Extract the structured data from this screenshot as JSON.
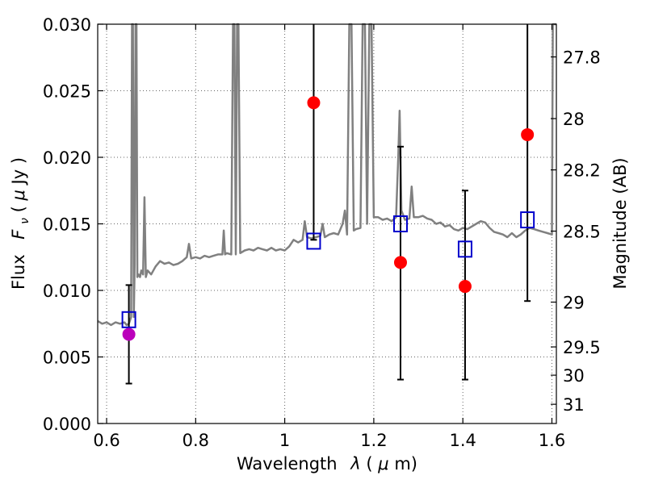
{
  "chart_data": {
    "type": "scatter",
    "xlabel_text": "Wavelength",
    "xlabel_symbol": "λ",
    "xlabel_unit_open": " (",
    "xlabel_unit_mu": "μ",
    "xlabel_unit_rest": "m)",
    "ylabel_text": "Flux",
    "ylabel_symbol": "F",
    "ylabel_sub": "ν",
    "ylabel_unit_open": " ( ",
    "ylabel_unit_mu": "μ",
    "ylabel_unit_rest": "Jy )",
    "y2label": "Magnitude (AB)",
    "xlim": [
      0.58,
      1.61
    ],
    "ylim": [
      0.0,
      0.03
    ],
    "grid": true,
    "x_ticks": [
      {
        "v": 0.6,
        "label": "0.6"
      },
      {
        "v": 0.8,
        "label": "0.8"
      },
      {
        "v": 1.0,
        "label": "1"
      },
      {
        "v": 1.2,
        "label": "1.2"
      },
      {
        "v": 1.4,
        "label": "1.4"
      },
      {
        "v": 1.6,
        "label": "1.6"
      }
    ],
    "y_ticks": [
      {
        "v": 0.0,
        "label": "0.000"
      },
      {
        "v": 0.005,
        "label": "0.005"
      },
      {
        "v": 0.01,
        "label": "0.010"
      },
      {
        "v": 0.015,
        "label": "0.015"
      },
      {
        "v": 0.02,
        "label": "0.020"
      },
      {
        "v": 0.025,
        "label": "0.025"
      },
      {
        "v": 0.03,
        "label": "0.030"
      }
    ],
    "y2_ticks": [
      {
        "mag": 27.8,
        "label": "27.8"
      },
      {
        "mag": 28.0,
        "label": "28"
      },
      {
        "mag": 28.2,
        "label": "28.2"
      },
      {
        "mag": 28.5,
        "label": "28.5"
      },
      {
        "mag": 29.0,
        "label": "29"
      },
      {
        "mag": 29.5,
        "label": "29.5"
      },
      {
        "mag": 30.0,
        "label": "30"
      },
      {
        "mag": 31.0,
        "label": "31"
      }
    ],
    "spectrum": {
      "color": "#808080",
      "points": [
        [
          0.58,
          0.0077
        ],
        [
          0.59,
          0.0075
        ],
        [
          0.6,
          0.0076
        ],
        [
          0.61,
          0.0074
        ],
        [
          0.62,
          0.0076
        ],
        [
          0.63,
          0.0075
        ],
        [
          0.64,
          0.0076
        ],
        [
          0.645,
          0.0074
        ],
        [
          0.65,
          0.0075
        ],
        [
          0.655,
          0.008
        ],
        [
          0.657,
          0.03
        ],
        [
          0.659,
          0.03
        ],
        [
          0.661,
          0.008
        ],
        [
          0.663,
          0.012
        ],
        [
          0.665,
          0.03
        ],
        [
          0.667,
          0.03
        ],
        [
          0.669,
          0.011
        ],
        [
          0.672,
          0.0112
        ],
        [
          0.675,
          0.011
        ],
        [
          0.678,
          0.0115
        ],
        [
          0.682,
          0.0112
        ],
        [
          0.685,
          0.017
        ],
        [
          0.688,
          0.011
        ],
        [
          0.692,
          0.0115
        ],
        [
          0.7,
          0.0112
        ],
        [
          0.71,
          0.0118
        ],
        [
          0.72,
          0.0122
        ],
        [
          0.73,
          0.012
        ],
        [
          0.74,
          0.0121
        ],
        [
          0.75,
          0.0119
        ],
        [
          0.76,
          0.012
        ],
        [
          0.77,
          0.0122
        ],
        [
          0.78,
          0.0125
        ],
        [
          0.785,
          0.0135
        ],
        [
          0.79,
          0.0124
        ],
        [
          0.8,
          0.0125
        ],
        [
          0.81,
          0.0124
        ],
        [
          0.82,
          0.0126
        ],
        [
          0.83,
          0.0125
        ],
        [
          0.84,
          0.0126
        ],
        [
          0.85,
          0.0127
        ],
        [
          0.86,
          0.0127
        ],
        [
          0.863,
          0.0145
        ],
        [
          0.866,
          0.0127
        ],
        [
          0.87,
          0.0128
        ],
        [
          0.88,
          0.0127
        ],
        [
          0.884,
          0.03
        ],
        [
          0.887,
          0.03
        ],
        [
          0.89,
          0.0127
        ],
        [
          0.893,
          0.03
        ],
        [
          0.896,
          0.03
        ],
        [
          0.9,
          0.0128
        ],
        [
          0.91,
          0.013
        ],
        [
          0.92,
          0.0131
        ],
        [
          0.93,
          0.013
        ],
        [
          0.94,
          0.0132
        ],
        [
          0.95,
          0.0131
        ],
        [
          0.96,
          0.013
        ],
        [
          0.97,
          0.0132
        ],
        [
          0.98,
          0.013
        ],
        [
          0.99,
          0.0131
        ],
        [
          1.0,
          0.013
        ],
        [
          1.01,
          0.0133
        ],
        [
          1.02,
          0.0138
        ],
        [
          1.03,
          0.0136
        ],
        [
          1.04,
          0.0138
        ],
        [
          1.045,
          0.0152
        ],
        [
          1.05,
          0.014
        ],
        [
          1.06,
          0.0139
        ],
        [
          1.07,
          0.014
        ],
        [
          1.08,
          0.0141
        ],
        [
          1.085,
          0.015
        ],
        [
          1.09,
          0.014
        ],
        [
          1.1,
          0.0142
        ],
        [
          1.11,
          0.0143
        ],
        [
          1.12,
          0.0142
        ],
        [
          1.13,
          0.015
        ],
        [
          1.135,
          0.016
        ],
        [
          1.14,
          0.0142
        ],
        [
          1.145,
          0.03
        ],
        [
          1.15,
          0.03
        ],
        [
          1.155,
          0.0145
        ],
        [
          1.16,
          0.0146
        ],
        [
          1.17,
          0.0147
        ],
        [
          1.175,
          0.03
        ],
        [
          1.18,
          0.03
        ],
        [
          1.185,
          0.015
        ],
        [
          1.19,
          0.03
        ],
        [
          1.195,
          0.03
        ],
        [
          1.2,
          0.0155
        ],
        [
          1.21,
          0.0155
        ],
        [
          1.22,
          0.0153
        ],
        [
          1.23,
          0.0154
        ],
        [
          1.24,
          0.0152
        ],
        [
          1.25,
          0.0155
        ],
        [
          1.255,
          0.02
        ],
        [
          1.258,
          0.0235
        ],
        [
          1.262,
          0.016
        ],
        [
          1.27,
          0.0153
        ],
        [
          1.28,
          0.0154
        ],
        [
          1.285,
          0.0178
        ],
        [
          1.29,
          0.0155
        ],
        [
          1.3,
          0.0155
        ],
        [
          1.31,
          0.0156
        ],
        [
          1.32,
          0.0154
        ],
        [
          1.33,
          0.0153
        ],
        [
          1.34,
          0.015
        ],
        [
          1.35,
          0.0151
        ],
        [
          1.36,
          0.0148
        ],
        [
          1.37,
          0.0149
        ],
        [
          1.38,
          0.0146
        ],
        [
          1.39,
          0.0145
        ],
        [
          1.4,
          0.0147
        ],
        [
          1.41,
          0.0146
        ],
        [
          1.42,
          0.0148
        ],
        [
          1.43,
          0.015
        ],
        [
          1.44,
          0.0152
        ],
        [
          1.45,
          0.0151
        ],
        [
          1.46,
          0.0147
        ],
        [
          1.47,
          0.0144
        ],
        [
          1.48,
          0.0143
        ],
        [
          1.49,
          0.0142
        ],
        [
          1.5,
          0.014
        ],
        [
          1.51,
          0.0143
        ],
        [
          1.52,
          0.014
        ],
        [
          1.53,
          0.0142
        ],
        [
          1.54,
          0.0145
        ],
        [
          1.55,
          0.0147
        ],
        [
          1.56,
          0.0146
        ],
        [
          1.57,
          0.0145
        ],
        [
          1.58,
          0.0144
        ],
        [
          1.59,
          0.0143
        ],
        [
          1.6,
          0.0142
        ],
        [
          1.602,
          0.03
        ],
        [
          1.61,
          0.03
        ]
      ]
    },
    "observed": [
      {
        "x": 0.65,
        "y": 0.0067,
        "color": "#bb00bb",
        "err_low": 0.003,
        "err_high": 0.0104
      },
      {
        "x": 1.065,
        "y": 0.0241,
        "color": "#ff0000",
        "err_low": 0.0138,
        "err_high": 0.03
      },
      {
        "x": 1.26,
        "y": 0.0121,
        "color": "#ff0000",
        "err_low": 0.0033,
        "err_high": 0.0208
      },
      {
        "x": 1.405,
        "y": 0.0103,
        "color": "#ff0000",
        "err_low": 0.0033,
        "err_high": 0.0175
      },
      {
        "x": 1.545,
        "y": 0.0217,
        "color": "#ff0000",
        "err_low": 0.0092,
        "err_high": 0.03
      }
    ],
    "model": [
      {
        "x": 0.65,
        "y": 0.0078
      },
      {
        "x": 1.065,
        "y": 0.0137
      },
      {
        "x": 1.26,
        "y": 0.015
      },
      {
        "x": 1.405,
        "y": 0.0131
      },
      {
        "x": 1.545,
        "y": 0.0153
      }
    ],
    "model_color": "#0000cc"
  }
}
